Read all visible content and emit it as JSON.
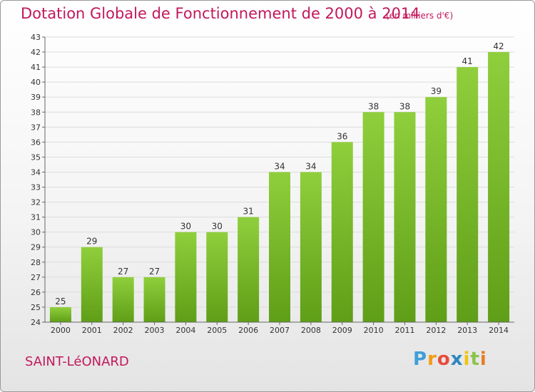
{
  "header": {
    "title": "Dotation Globale de Fonctionnement de 2000 à 2014",
    "subtitle": "(en milliers d'€)"
  },
  "footer": {
    "town": "SAINT-LéONARD",
    "logo_letters": [
      "P",
      "r",
      "o",
      "x",
      "i",
      "t",
      "i"
    ],
    "logo_colors": [
      "#3f9fd8",
      "#f39c12",
      "#e74c3c",
      "#2e86c1",
      "#f1c40f",
      "#8bc34a",
      "#e67e22"
    ]
  },
  "chart_data": {
    "type": "bar",
    "title": "Dotation Globale de Fonctionnement de 2000 à 2014",
    "subtitle": "(en milliers d'€)",
    "categories": [
      "2000",
      "2001",
      "2002",
      "2003",
      "2004",
      "2005",
      "2006",
      "2007",
      "2008",
      "2009",
      "2010",
      "2011",
      "2012",
      "2013",
      "2014"
    ],
    "values": [
      25,
      29,
      27,
      27,
      30,
      30,
      31,
      34,
      34,
      36,
      38,
      38,
      39,
      41,
      42
    ],
    "ylim": [
      24,
      43
    ],
    "yticks": [
      24,
      25,
      26,
      27,
      28,
      29,
      30,
      31,
      32,
      33,
      34,
      35,
      36,
      37,
      38,
      39,
      40,
      41,
      42,
      43
    ],
    "grid": true,
    "bar_color_top": "#8fcf3c",
    "bar_color_bottom": "#5f9e17",
    "grid_color": "#dcdcdc"
  }
}
